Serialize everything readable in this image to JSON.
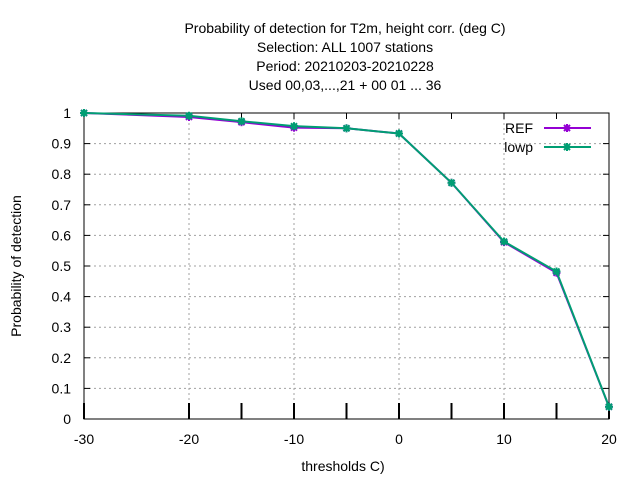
{
  "chart_data": {
    "type": "line",
    "title_lines": [
      "Probability of detection  for T2m, height corr. (deg C)",
      "Selection: ALL   1007 stations",
      "Period: 20210203-20210228",
      "Used  00,03,...,21  + 00 01 ... 36"
    ],
    "xlabel": "thresholds C)",
    "ylabel": "Probability of detection",
    "xlim": [
      -30,
      20
    ],
    "ylim": [
      0,
      1
    ],
    "x_ticks": [
      -30,
      -20,
      -10,
      0,
      10,
      20
    ],
    "x_tick_labels": [
      "-30",
      "-20",
      "-10",
      "0",
      "10",
      "20"
    ],
    "y_ticks": [
      0,
      0.1,
      0.2,
      0.3,
      0.4,
      0.5,
      0.6,
      0.7,
      0.8,
      0.9,
      1
    ],
    "y_tick_labels": [
      "0",
      "0.1",
      "0.2",
      "0.3",
      "0.4",
      "0.5",
      "0.6",
      "0.7",
      "0.8",
      "0.9",
      "1"
    ],
    "grid": true,
    "legend_position": "top-right",
    "x": [
      -30,
      -20,
      -15,
      -10,
      -5,
      0,
      5,
      10,
      15,
      20
    ],
    "series": [
      {
        "name": "REF",
        "color": "#9400d3",
        "values": [
          1.0,
          0.987,
          0.97,
          0.952,
          0.95,
          0.933,
          0.772,
          0.578,
          0.478,
          0.04
        ]
      },
      {
        "name": "lowp",
        "color": "#009e73",
        "values": [
          1.0,
          0.991,
          0.973,
          0.957,
          0.95,
          0.933,
          0.772,
          0.58,
          0.482,
          0.04
        ]
      }
    ]
  }
}
